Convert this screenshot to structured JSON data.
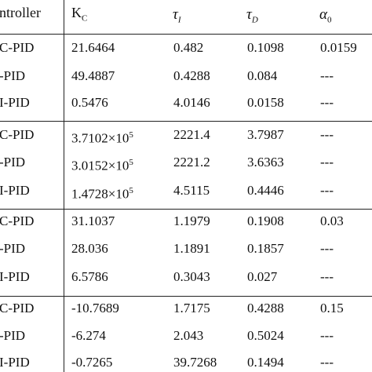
{
  "header": {
    "controller": "ntroller",
    "kc_main": "K",
    "kc_sub": "C",
    "tau_i_main": "τ",
    "tau_i_sub": "I",
    "tau_d_main": "τ",
    "tau_d_sub": "D",
    "alpha_main": "α",
    "alpha_sub": "0"
  },
  "rows": [
    {
      "controller": "C-PID",
      "kc": "21.6464",
      "tau_i": "0.482",
      "tau_d": "0.1098",
      "alpha": "0.0159"
    },
    {
      "controller": "-PID",
      "kc": "49.4887",
      "tau_i": "0.4288",
      "tau_d": "0.084",
      "alpha": "---"
    },
    {
      "controller": "I-PID",
      "kc": "0.5476",
      "tau_i": "4.0146",
      "tau_d": "0.0158",
      "alpha": "---"
    },
    {
      "controller": "C-PID",
      "kc_base": "3.7102×10",
      "kc_exp": "5",
      "tau_i": "2221.4",
      "tau_d": "3.7987",
      "alpha": "---"
    },
    {
      "controller": "-PID",
      "kc_base": "3.0152×10",
      "kc_exp": "5",
      "tau_i": "2221.2",
      "tau_d": "3.6363",
      "alpha": "---"
    },
    {
      "controller": "I-PID",
      "kc_base": "1.4728×10",
      "kc_exp": "5",
      "tau_i": "4.5115",
      "tau_d": "0.4446",
      "alpha": "---"
    },
    {
      "controller": "C-PID",
      "kc": "31.1037",
      "tau_i": "1.1979",
      "tau_d": "0.1908",
      "alpha": "0.03"
    },
    {
      "controller": "-PID",
      "kc": "28.036",
      "tau_i": "1.1891",
      "tau_d": "0.1857",
      "alpha": "---"
    },
    {
      "controller": "I-PID",
      "kc": "6.5786",
      "tau_i": "0.3043",
      "tau_d": "0.027",
      "alpha": "---"
    },
    {
      "controller": "C-PID",
      "kc": "-10.7689",
      "tau_i": "1.7175",
      "tau_d": "0.4288",
      "alpha": "0.15"
    },
    {
      "controller": "-PID",
      "kc": "-6.274",
      "tau_i": "2.043",
      "tau_d": "0.5024",
      "alpha": "---"
    },
    {
      "controller": "I-PID",
      "kc": "-0.7265",
      "tau_i": "39.7268",
      "tau_d": "0.1494",
      "alpha": "---"
    }
  ]
}
